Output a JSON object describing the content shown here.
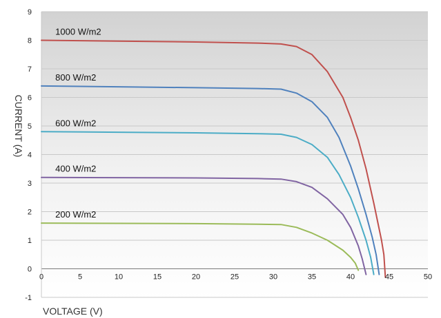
{
  "chart_data": {
    "type": "line",
    "xlabel": "VOLTAGE (V)",
    "ylabel": "CURRENT (A)",
    "xlim": [
      0,
      50
    ],
    "ylim": [
      -1,
      9
    ],
    "x_ticks": [
      "0",
      "5",
      "10",
      "15",
      "20",
      "25",
      "30",
      "35",
      "40",
      "45",
      "50"
    ],
    "y_ticks": [
      "-1",
      "0",
      "1",
      "2",
      "3",
      "4",
      "5",
      "6",
      "7",
      "8",
      "9"
    ],
    "grid": "horizontal",
    "background": "gray gradient fading to white toward the bottom",
    "series": [
      {
        "name": "1000 W/m2",
        "color": "#c0504d",
        "points": [
          [
            0,
            8.0
          ],
          [
            10,
            7.97
          ],
          [
            20,
            7.94
          ],
          [
            28,
            7.9
          ],
          [
            31,
            7.87
          ],
          [
            33,
            7.78
          ],
          [
            35,
            7.5
          ],
          [
            37,
            6.9
          ],
          [
            39,
            6.0
          ],
          [
            40,
            5.3
          ],
          [
            41,
            4.5
          ],
          [
            42,
            3.5
          ],
          [
            43,
            2.3
          ],
          [
            44,
            1.0
          ],
          [
            44.3,
            0.5
          ],
          [
            44.5,
            -0.3
          ]
        ]
      },
      {
        "name": "800 W/m2",
        "color": "#4f81bd",
        "points": [
          [
            0,
            6.4
          ],
          [
            10,
            6.37
          ],
          [
            20,
            6.34
          ],
          [
            28,
            6.31
          ],
          [
            31,
            6.29
          ],
          [
            33,
            6.15
          ],
          [
            35,
            5.85
          ],
          [
            37,
            5.3
          ],
          [
            38.5,
            4.6
          ],
          [
            40,
            3.6
          ],
          [
            41,
            2.8
          ],
          [
            42,
            1.9
          ],
          [
            42.8,
            1.1
          ],
          [
            43.3,
            0.5
          ],
          [
            43.7,
            -0.2
          ]
        ]
      },
      {
        "name": "600 W/m2",
        "color": "#4bacc6",
        "points": [
          [
            0,
            4.8
          ],
          [
            10,
            4.78
          ],
          [
            20,
            4.76
          ],
          [
            28,
            4.73
          ],
          [
            31,
            4.71
          ],
          [
            33,
            4.6
          ],
          [
            35,
            4.35
          ],
          [
            37,
            3.9
          ],
          [
            38.5,
            3.3
          ],
          [
            40,
            2.5
          ],
          [
            41,
            1.8
          ],
          [
            42,
            1.0
          ],
          [
            42.6,
            0.4
          ],
          [
            43.0,
            -0.2
          ]
        ]
      },
      {
        "name": "400 W/m2",
        "color": "#8064a2",
        "points": [
          [
            0,
            3.2
          ],
          [
            10,
            3.19
          ],
          [
            20,
            3.18
          ],
          [
            28,
            3.16
          ],
          [
            31,
            3.14
          ],
          [
            33,
            3.05
          ],
          [
            35,
            2.85
          ],
          [
            37,
            2.45
          ],
          [
            39,
            1.9
          ],
          [
            40,
            1.45
          ],
          [
            41,
            0.8
          ],
          [
            41.5,
            0.35
          ],
          [
            42.0,
            -0.2
          ]
        ]
      },
      {
        "name": "200 W/m2",
        "color": "#9bbb59",
        "points": [
          [
            0,
            1.6
          ],
          [
            10,
            1.59
          ],
          [
            20,
            1.58
          ],
          [
            28,
            1.56
          ],
          [
            31,
            1.55
          ],
          [
            33,
            1.45
          ],
          [
            35,
            1.25
          ],
          [
            37,
            1.0
          ],
          [
            39,
            0.65
          ],
          [
            40,
            0.4
          ],
          [
            40.6,
            0.2
          ],
          [
            41.0,
            -0.05
          ]
        ]
      }
    ]
  }
}
